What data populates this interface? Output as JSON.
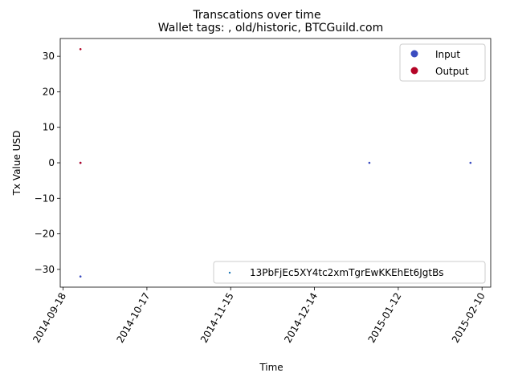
{
  "chart_data": {
    "type": "scatter",
    "suptitle": "Transcations over time",
    "title": "Wallet tags: , old/historic, BTCGuild.com",
    "xlabel": "Time",
    "ylabel": "Tx Value USD",
    "x_tick_labels": [
      "2014-09-18",
      "2014-10-17",
      "2014-11-15",
      "2014-12-14",
      "2015-01-12",
      "2015-02-10"
    ],
    "xlim": [
      "2014-09-17",
      "2015-02-13"
    ],
    "ylim": [
      -35,
      35
    ],
    "y_ticks": [
      -30,
      -20,
      -10,
      0,
      10,
      20,
      30
    ],
    "grid": false,
    "color_legend": {
      "placement": "upper right",
      "entries": [
        {
          "label": "Input",
          "color": "#3b4cc0"
        },
        {
          "label": "Output",
          "color": "#b40426"
        }
      ]
    },
    "wallet_legend": {
      "placement": "lower right",
      "label": "13PbFjEc5XY4tc2xmTgrEwKKEhEt6JgtBs",
      "color": "#1f77b4"
    },
    "series": [
      {
        "name": "Input",
        "color": "#3b4cc0",
        "points": [
          {
            "x": "2014-09-24",
            "y": -32
          },
          {
            "x": "2014-09-24",
            "y": 0
          },
          {
            "x": "2015-01-02",
            "y": 0
          },
          {
            "x": "2015-02-06",
            "y": 0
          }
        ]
      },
      {
        "name": "Output",
        "color": "#b40426",
        "points": [
          {
            "x": "2014-09-24",
            "y": 32
          },
          {
            "x": "2014-09-24",
            "y": 0
          }
        ]
      }
    ]
  }
}
